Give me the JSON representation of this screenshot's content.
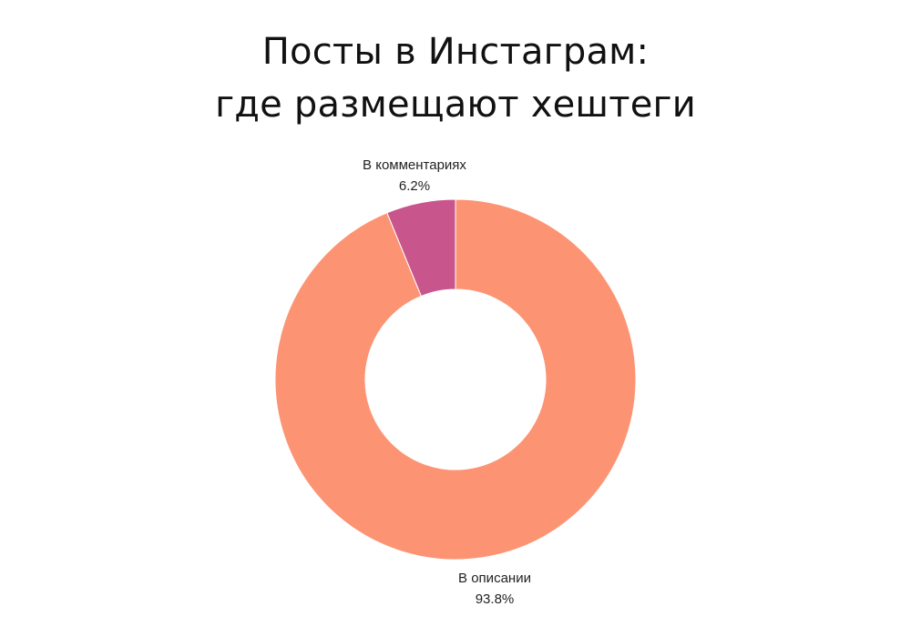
{
  "chart_data": {
    "type": "pie",
    "variant": "donut",
    "title_lines": [
      "Посты в Инстаграм:",
      "где размещают хештеги"
    ],
    "slices": [
      {
        "label": "В описании",
        "value": 93.8,
        "value_label": "93.8%",
        "color": "#fc9474"
      },
      {
        "label": "В комментариях",
        "value": 6.2,
        "value_label": "6.2%",
        "color": "#c8568c"
      }
    ],
    "legend": "none"
  }
}
